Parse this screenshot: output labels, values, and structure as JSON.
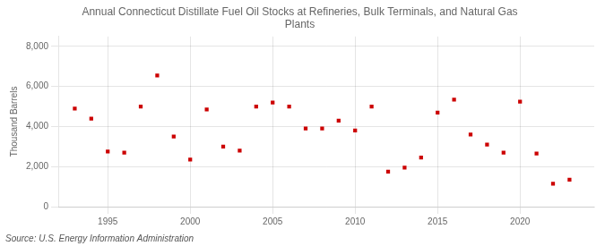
{
  "chart_data": {
    "type": "scatter",
    "title": "Annual Connecticut Distillate Fuel Oil Stocks at Refineries, Bulk Terminals, and Natural Gas\nPlants",
    "y_label": "Thousand Barrels",
    "annotation": "Source: U.S. Energy Information Administration",
    "x": [
      1993,
      1994,
      1995,
      1996,
      1997,
      1998,
      1999,
      2000,
      2001,
      2002,
      2003,
      2004,
      2005,
      2006,
      2007,
      2008,
      2009,
      2010,
      2011,
      2012,
      2013,
      2014,
      2015,
      2016,
      2017,
      2018,
      2019,
      2020,
      2021,
      2022,
      2023
    ],
    "values": [
      4900,
      4400,
      2750,
      2700,
      5000,
      6550,
      3500,
      2350,
      4850,
      3000,
      2800,
      5000,
      5200,
      5000,
      3900,
      3900,
      4300,
      3800,
      5000,
      1750,
      1950,
      2450,
      4700,
      5350,
      3600,
      3100,
      2700,
      5250,
      2650,
      1150,
      1350
    ],
    "color": "#cc0000",
    "marker": "square",
    "xlim": [
      1992.0,
      2024.5
    ],
    "xticks": [
      1995,
      2000,
      2005,
      2010,
      2015,
      2020
    ],
    "ylim": [
      0,
      8500
    ],
    "yticks": [
      0,
      {
        "value": 2000,
        "label": "2,000"
      },
      {
        "value": 4000,
        "label": "4,000"
      },
      {
        "value": 6000,
        "label": "6,000"
      },
      {
        "value": 8000,
        "label": "8,000"
      }
    ],
    "grid": true
  }
}
